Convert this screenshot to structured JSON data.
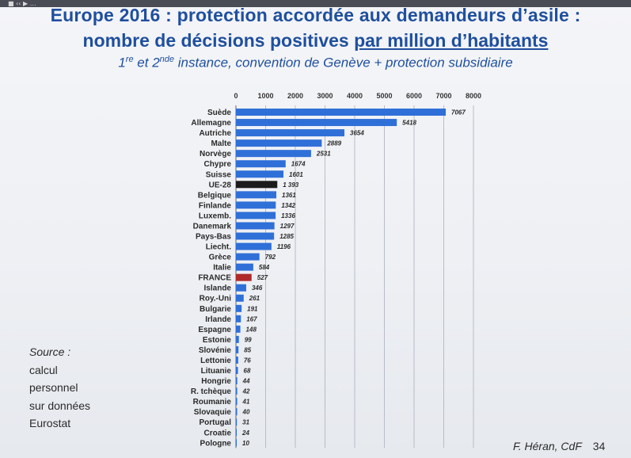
{
  "topbar": {
    "icon": "media-control-icon",
    "text": "■ ‹‹ ▶ …"
  },
  "title": {
    "line1": "Europe 2016 : protection accordée aux demandeurs d’asile :",
    "line2_prefix": "nombre de décisions positives ",
    "line2_underlined": "par million d’habitants",
    "sub_a": "1",
    "sub_a_sup": "re",
    "sub_b": " et 2",
    "sub_b_sup": "nde",
    "sub_c": " instance, convention de Genève + protection subsidiaire"
  },
  "source": {
    "label": "Source :",
    "lines": [
      "calcul",
      "personnel",
      "sur données",
      "Eurostat"
    ]
  },
  "footer": {
    "author": "F. Héran, CdF",
    "page": "34"
  },
  "colors": {
    "title": "#1f4f9e",
    "bar": "#2f6fd8",
    "bar_eu": "#1c1c1c",
    "bar_france": "#b02a2a",
    "grid": "#b8bcc6"
  },
  "chart_data": {
    "type": "bar",
    "orientation": "horizontal",
    "xlim": [
      0,
      8000
    ],
    "xticks": [
      "0",
      "1000",
      "2000",
      "3000",
      "4000",
      "5000",
      "6000",
      "7000",
      "8000"
    ],
    "grid": true,
    "categories": [
      "Suède",
      "Allemagne",
      "Autriche",
      "Malte",
      "Norvège",
      "Chypre",
      "Suisse",
      "UE-28",
      "Belgique",
      "Finlande",
      "Luxemb.",
      "Danemark",
      "Pays-Bas",
      "Liecht.",
      "Grèce",
      "Italie",
      "FRANCE",
      "Islande",
      "Roy.-Uni",
      "Bulgarie",
      "Irlande",
      "Espagne",
      "Estonie",
      "Slovénie",
      "Lettonie",
      "Lituanie",
      "Hongrie",
      "R. tchèque",
      "Roumanie",
      "Slovaquie",
      "Portugal",
      "Croatie",
      "Pologne"
    ],
    "values": [
      7067,
      5418,
      3654,
      2889,
      2531,
      1674,
      1601,
      1393,
      1361,
      1342,
      1336,
      1297,
      1285,
      1196,
      792,
      584,
      527,
      346,
      261,
      191,
      167,
      148,
      99,
      85,
      76,
      68,
      44,
      42,
      41,
      40,
      31,
      24,
      10
    ],
    "value_labels": [
      "7067",
      "5418",
      "3654",
      "2889",
      "2531",
      "1674",
      "1601",
      "1 393",
      "1361",
      "1342",
      "1336",
      "1297",
      "1285",
      "1196",
      "792",
      "584",
      "527",
      "346",
      "261",
      "191",
      "167",
      "148",
      "99",
      "85",
      "76",
      "68",
      "44",
      "42",
      "41",
      "40",
      "31",
      "24",
      "10"
    ],
    "highlight": {
      "UE-28": "bar_eu",
      "FRANCE": "bar_france"
    }
  }
}
